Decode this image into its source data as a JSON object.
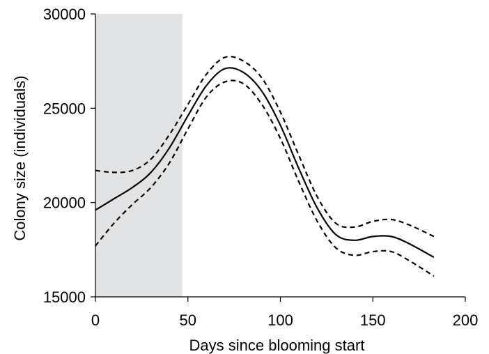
{
  "chart_data": {
    "type": "line",
    "xlabel": "Days since blooming start",
    "ylabel": "Colony size (individuals)",
    "xlim": [
      0,
      200
    ],
    "ylim": [
      15000,
      30000
    ],
    "x_ticks": [
      "0",
      "50",
      "100",
      "150",
      "200"
    ],
    "y_ticks": [
      "15000",
      "20000",
      "25000",
      "30000"
    ],
    "grid": false,
    "shaded_region": {
      "x_start": 0,
      "x_end": 47,
      "color": "#e2e3e5"
    },
    "series": [
      {
        "style": "solid",
        "x": [
          0,
          10,
          20,
          30,
          40,
          50,
          60,
          70,
          80,
          90,
          100,
          110,
          120,
          130,
          140,
          150,
          160,
          170,
          183
        ],
        "values": [
          19600,
          20200,
          20800,
          21600,
          22900,
          24600,
          26200,
          27100,
          26900,
          25900,
          24100,
          21800,
          19700,
          18300,
          18000,
          18200,
          18200,
          17800,
          17100
        ]
      },
      {
        "style": "dashed",
        "x": [
          0,
          10,
          20,
          30,
          40,
          50,
          60,
          70,
          80,
          90,
          100,
          110,
          120,
          130,
          140,
          150,
          160,
          170,
          183
        ],
        "values": [
          21700,
          21600,
          21700,
          22300,
          23600,
          25200,
          26800,
          27700,
          27500,
          26600,
          24800,
          22500,
          20300,
          18900,
          18700,
          19000,
          19100,
          18800,
          18200
        ]
      },
      {
        "style": "dashed",
        "x": [
          0,
          10,
          20,
          30,
          40,
          50,
          60,
          70,
          80,
          90,
          100,
          110,
          120,
          130,
          140,
          150,
          160,
          170,
          183
        ],
        "values": [
          17700,
          18900,
          19900,
          20800,
          22100,
          23900,
          25600,
          26400,
          26300,
          25200,
          23400,
          21100,
          19000,
          17600,
          17200,
          17400,
          17400,
          16900,
          16100
        ]
      }
    ],
    "colors": {
      "line": "#000000",
      "shade": "#e2e3e5",
      "axis": "#000000"
    }
  }
}
